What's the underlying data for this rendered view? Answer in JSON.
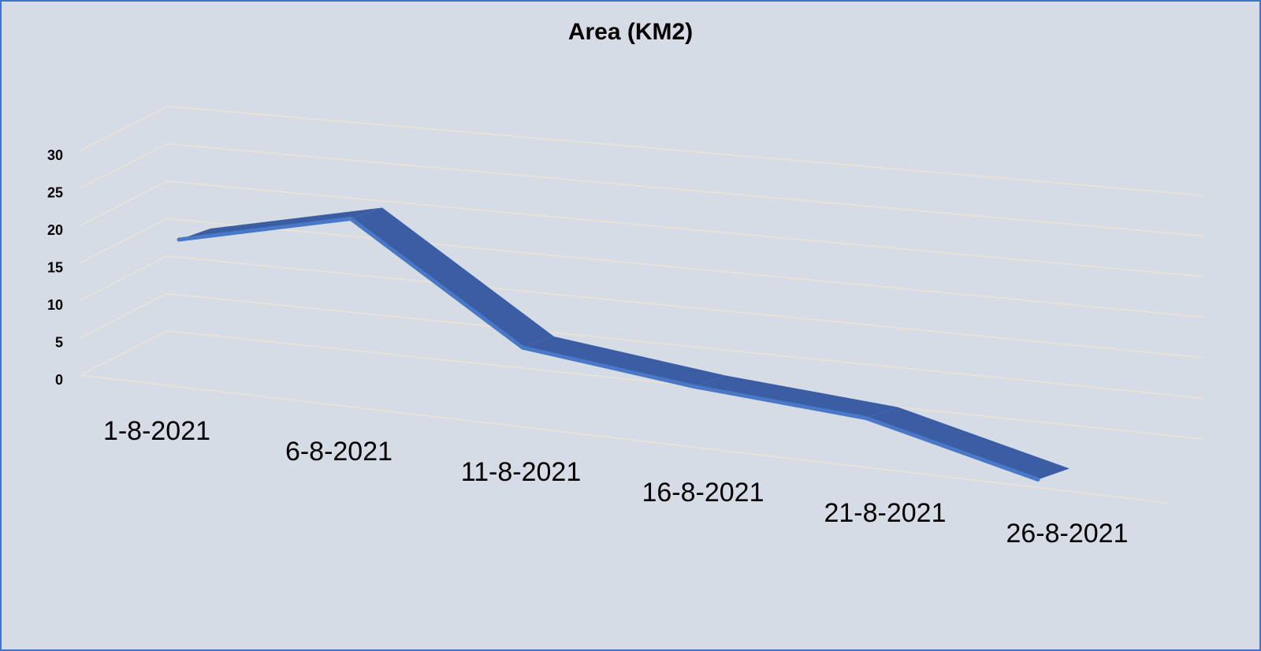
{
  "chart_data": {
    "type": "line",
    "title": "Area (KM2)",
    "xlabel": "",
    "ylabel": "",
    "categories": [
      "1-8-2021",
      "6-8-2021",
      "11-8-2021",
      "16-8-2021",
      "21-8-2021",
      "26-8-2021"
    ],
    "series": [
      {
        "values": [
          20,
          25,
          10,
          7,
          5,
          -1
        ]
      }
    ],
    "ylim": [
      0,
      30
    ],
    "yticks": [
      "0",
      "5",
      "10",
      "15",
      "20",
      "25",
      "30"
    ],
    "grid": true,
    "legend": "none",
    "style": "3d-ribbon"
  },
  "colors": {
    "background": "#d6dce5",
    "border": "#4472c4",
    "ribbon_top": "#3a5da3",
    "ribbon_front": "#4a78c8",
    "gridline": "#ebe3d6"
  }
}
